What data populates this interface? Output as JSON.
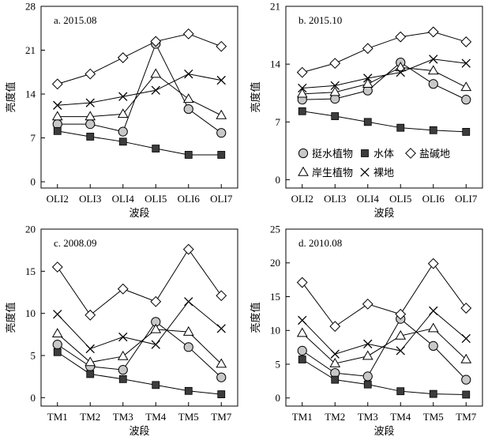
{
  "chart_data": [
    {
      "type": "line",
      "title": "a. 2015.08",
      "xlabel": "波段",
      "ylabel": "亮度值",
      "categories": [
        "OLI2",
        "OLI3",
        "OLI4",
        "OLI5",
        "OLI6",
        "OLI7"
      ],
      "ylim": [
        -1,
        28
      ],
      "yticks": [
        0,
        7,
        14,
        21,
        28
      ],
      "series": [
        {
          "name": "挺水植物",
          "marker": "circle",
          "values": [
            9.2,
            9.2,
            8.0,
            22.0,
            11.6,
            7.8
          ]
        },
        {
          "name": "水体",
          "marker": "square",
          "values": [
            8.1,
            7.2,
            6.4,
            5.3,
            4.3,
            4.3
          ]
        },
        {
          "name": "盐碱地",
          "marker": "diamond",
          "values": [
            15.6,
            17.2,
            19.8,
            22.4,
            23.6,
            21.6
          ]
        },
        {
          "name": "岸生植物",
          "marker": "triangle",
          "values": [
            10.4,
            10.4,
            10.8,
            17.2,
            13.2,
            10.6
          ]
        },
        {
          "name": "裸地",
          "marker": "cross",
          "values": [
            12.2,
            12.6,
            13.6,
            14.6,
            17.2,
            16.2
          ]
        }
      ]
    },
    {
      "type": "line",
      "title": "b. 2015.10",
      "xlabel": "波段",
      "ylabel": "亮度值",
      "categories": [
        "OLI2",
        "OLI3",
        "OLI4",
        "OLI5",
        "OLI6",
        "OLI7"
      ],
      "ylim": [
        -1,
        21
      ],
      "yticks": [
        0,
        7,
        14,
        21
      ],
      "series": [
        {
          "name": "挺水植物",
          "marker": "circle",
          "values": [
            9.7,
            9.8,
            10.8,
            14.2,
            11.6,
            9.7
          ]
        },
        {
          "name": "水体",
          "marker": "square",
          "values": [
            8.3,
            7.7,
            7.0,
            6.3,
            6.0,
            5.8
          ]
        },
        {
          "name": "盐碱地",
          "marker": "diamond",
          "values": [
            13.0,
            14.1,
            15.9,
            17.3,
            17.9,
            16.7
          ]
        },
        {
          "name": "岸生植物",
          "marker": "triangle",
          "values": [
            10.4,
            10.6,
            11.6,
            13.6,
            13.2,
            11.2
          ]
        },
        {
          "name": "裸地",
          "marker": "cross",
          "values": [
            11.1,
            11.4,
            12.3,
            13.0,
            14.6,
            14.1
          ]
        }
      ],
      "legend": {
        "placement": "bottom",
        "items": [
          {
            "marker": "circle",
            "label": "挺水植物"
          },
          {
            "marker": "square",
            "label": "水体"
          },
          {
            "marker": "diamond",
            "label": "盐碱地"
          },
          {
            "marker": "triangle",
            "label": "岸生植物"
          },
          {
            "marker": "cross",
            "label": "裸地"
          }
        ]
      }
    },
    {
      "type": "line",
      "title": "c. 2008.09",
      "xlabel": "波段",
      "ylabel": "亮度值",
      "categories": [
        "TM1",
        "TM2",
        "TM3",
        "TM4",
        "TM5",
        "TM7"
      ],
      "ylim": [
        -1,
        20
      ],
      "yticks": [
        0,
        5,
        10,
        15,
        20
      ],
      "series": [
        {
          "name": "挺水植物",
          "marker": "circle",
          "values": [
            6.3,
            3.7,
            3.3,
            9.0,
            6.0,
            2.4
          ]
        },
        {
          "name": "水体",
          "marker": "square",
          "values": [
            5.4,
            2.8,
            2.2,
            1.5,
            0.8,
            0.4
          ]
        },
        {
          "name": "盐碱地",
          "marker": "diamond",
          "values": [
            15.5,
            9.8,
            12.9,
            11.4,
            17.6,
            12.1
          ]
        },
        {
          "name": "岸生植物",
          "marker": "triangle",
          "values": [
            7.6,
            4.2,
            4.9,
            8.1,
            7.8,
            4.0
          ]
        },
        {
          "name": "裸地",
          "marker": "cross",
          "values": [
            9.9,
            5.8,
            7.2,
            6.3,
            11.4,
            8.2
          ]
        }
      ]
    },
    {
      "type": "line",
      "title": "d. 2010.08",
      "xlabel": "波段",
      "ylabel": "亮度值",
      "categories": [
        "TM1",
        "TM2",
        "TM3",
        "TM4",
        "TM5",
        "TM7"
      ],
      "ylim": [
        -1.2,
        25
      ],
      "yticks": [
        0,
        5,
        10,
        15,
        20,
        25
      ],
      "series": [
        {
          "name": "挺水植物",
          "marker": "circle",
          "values": [
            7.0,
            3.7,
            3.2,
            11.7,
            7.7,
            2.7
          ]
        },
        {
          "name": "水体",
          "marker": "square",
          "values": [
            5.7,
            2.7,
            2.0,
            1.0,
            0.6,
            0.5
          ]
        },
        {
          "name": "盐碱地",
          "marker": "diamond",
          "values": [
            17.1,
            10.6,
            13.9,
            12.4,
            19.9,
            13.3
          ]
        },
        {
          "name": "岸生植物",
          "marker": "triangle",
          "values": [
            9.6,
            5.1,
            6.2,
            9.2,
            10.3,
            5.7
          ]
        },
        {
          "name": "裸地",
          "marker": "cross",
          "values": [
            11.5,
            6.5,
            8.0,
            7.0,
            12.9,
            8.8
          ]
        }
      ]
    }
  ]
}
